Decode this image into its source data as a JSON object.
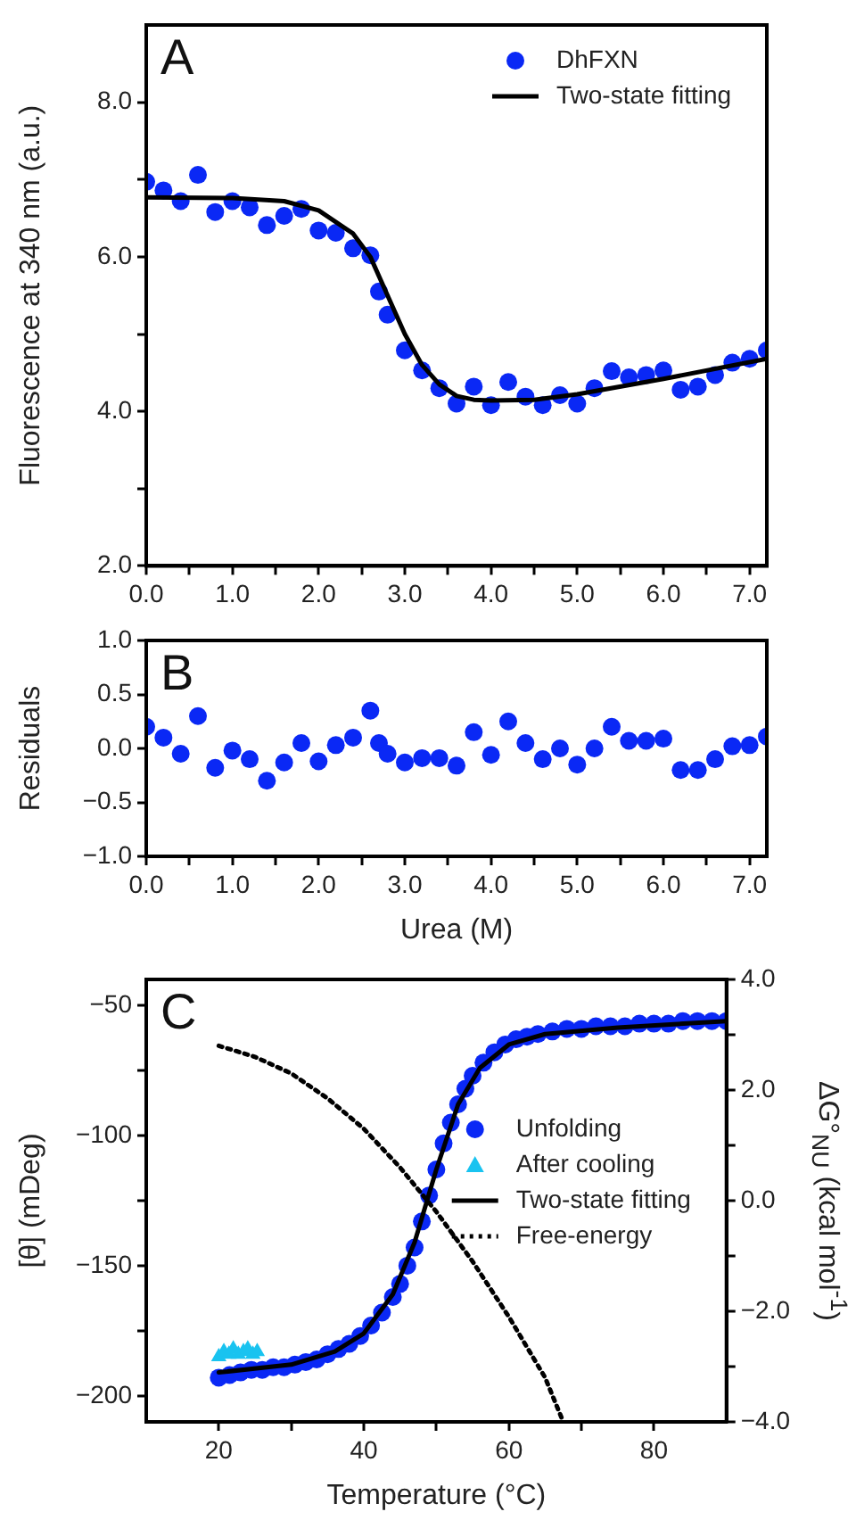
{
  "chart_data": [
    {
      "type": "scatter",
      "ylabel": "Fluorescence at 340 nm (a.u.)",
      "annotations": [
        "A"
      ],
      "legend": "top right",
      "grid": false,
      "xlim": [
        0,
        7.2
      ],
      "xticks": [
        {
          "value": 0,
          "label": "0.0"
        },
        {
          "value": 0.5,
          "label": null
        },
        {
          "value": 1,
          "label": "1.0"
        },
        {
          "value": 1.5,
          "label": null
        },
        {
          "value": 2,
          "label": "2.0"
        },
        {
          "value": 2.5,
          "label": null
        },
        {
          "value": 3,
          "label": "3.0"
        },
        {
          "value": 3.5,
          "label": null
        },
        {
          "value": 4,
          "label": "4.0"
        },
        {
          "value": 4.5,
          "label": null
        },
        {
          "value": 5,
          "label": "5.0"
        },
        {
          "value": 5.5,
          "label": null
        },
        {
          "value": 6,
          "label": "6.0"
        },
        {
          "value": 6.5,
          "label": null
        },
        {
          "value": 7,
          "label": "7.0"
        }
      ],
      "ylim": [
        2,
        9
      ],
      "yticks": [
        {
          "value": 2,
          "label": "2.0"
        },
        {
          "value": 3,
          "label": null
        },
        {
          "value": 4,
          "label": "4.0"
        },
        {
          "value": 5,
          "label": null
        },
        {
          "value": 6,
          "label": "6.0"
        },
        {
          "value": 7,
          "label": null
        },
        {
          "value": 8,
          "label": "8.0"
        }
      ],
      "series": [
        {
          "name": "DhFXN",
          "type": "scatter",
          "marker": "circle",
          "color": "#0a28f5",
          "x": [
            0,
            0.2,
            0.4,
            0.6,
            0.8,
            1.0,
            1.2,
            1.4,
            1.6,
            1.8,
            2.0,
            2.2,
            2.4,
            2.6,
            2.7,
            2.8,
            3.0,
            3.2,
            3.4,
            3.6,
            3.8,
            4.0,
            4.2,
            4.4,
            4.6,
            4.8,
            5.0,
            5.2,
            5.4,
            5.6,
            5.8,
            6.0,
            6.2,
            6.4,
            6.6,
            6.8,
            7.0,
            7.2
          ],
          "values": [
            6.97,
            6.86,
            6.72,
            7.06,
            6.58,
            6.72,
            6.64,
            6.41,
            6.53,
            6.62,
            6.34,
            6.31,
            6.11,
            6.02,
            5.55,
            5.25,
            4.79,
            4.53,
            4.3,
            4.1,
            4.32,
            4.08,
            4.38,
            4.19,
            4.08,
            4.21,
            4.1,
            4.3,
            4.52,
            4.44,
            4.47,
            4.53,
            4.28,
            4.32,
            4.47,
            4.63,
            4.68,
            4.79
          ]
        },
        {
          "name": "Two-state fitting",
          "type": "line",
          "line_style": "solid",
          "color": "#000000",
          "x": [
            0,
            1,
            1.6,
            2,
            2.4,
            2.6,
            2.8,
            3,
            3.2,
            3.4,
            3.6,
            3.8,
            4,
            4.5,
            5,
            6,
            7.2
          ],
          "values": [
            6.77,
            6.76,
            6.72,
            6.6,
            6.3,
            6.0,
            5.5,
            5.0,
            4.6,
            4.35,
            4.2,
            4.15,
            4.14,
            4.15,
            4.22,
            4.42,
            4.68
          ]
        }
      ]
    },
    {
      "type": "scatter",
      "ylabel": "Residuals",
      "xlabel": "Urea (M)",
      "annotations": [
        "B"
      ],
      "grid": false,
      "xlim": [
        0,
        7.2
      ],
      "xticks": [
        {
          "value": 0,
          "label": "0.0"
        },
        {
          "value": 0.5,
          "label": null
        },
        {
          "value": 1,
          "label": "1.0"
        },
        {
          "value": 1.5,
          "label": null
        },
        {
          "value": 2,
          "label": "2.0"
        },
        {
          "value": 2.5,
          "label": null
        },
        {
          "value": 3,
          "label": "3.0"
        },
        {
          "value": 3.5,
          "label": null
        },
        {
          "value": 4,
          "label": "4.0"
        },
        {
          "value": 4.5,
          "label": null
        },
        {
          "value": 5,
          "label": "5.0"
        },
        {
          "value": 5.5,
          "label": null
        },
        {
          "value": 6,
          "label": "6.0"
        },
        {
          "value": 6.5,
          "label": null
        },
        {
          "value": 7,
          "label": "7.0"
        }
      ],
      "ylim": [
        -1,
        1
      ],
      "yticks": [
        {
          "value": -1,
          "label": "−1.0"
        },
        {
          "value": -0.5,
          "label": "−0.5"
        },
        {
          "value": 0,
          "label": "0.0"
        },
        {
          "value": 0.5,
          "label": "0.5"
        },
        {
          "value": 1,
          "label": "1.0"
        }
      ],
      "series": [
        {
          "type": "scatter",
          "marker": "circle",
          "color": "#0a28f5",
          "x": [
            0,
            0.2,
            0.4,
            0.6,
            0.8,
            1.0,
            1.2,
            1.4,
            1.6,
            1.8,
            2.0,
            2.2,
            2.4,
            2.6,
            2.7,
            2.8,
            3.0,
            3.2,
            3.4,
            3.6,
            3.8,
            4.0,
            4.2,
            4.4,
            4.6,
            4.8,
            5.0,
            5.2,
            5.4,
            5.6,
            5.8,
            6.0,
            6.2,
            6.4,
            6.6,
            6.8,
            7.0,
            7.2
          ],
          "values": [
            0.2,
            0.1,
            -0.05,
            0.3,
            -0.18,
            -0.02,
            -0.1,
            -0.3,
            -0.13,
            0.05,
            -0.12,
            0.03,
            0.1,
            0.35,
            0.05,
            -0.05,
            -0.13,
            -0.09,
            -0.09,
            -0.16,
            0.15,
            -0.06,
            0.25,
            0.05,
            -0.1,
            0.0,
            -0.15,
            0.0,
            0.2,
            0.07,
            0.07,
            0.09,
            -0.2,
            -0.2,
            -0.1,
            0.02,
            0.03,
            0.11
          ]
        }
      ]
    },
    {
      "type": "scatter",
      "xlabel": "Temperature (°C)",
      "ylabel": "[θ] (mDeg)",
      "y2label": "ΔG°$_{NU}$ (kcal mol$^{-1}$)",
      "annotations": [
        "C"
      ],
      "legend": "right",
      "grid": false,
      "xlim": [
        10,
        90
      ],
      "xticks": [
        {
          "value": 20,
          "label": "20"
        },
        {
          "value": 30,
          "label": null
        },
        {
          "value": 40,
          "label": "40"
        },
        {
          "value": 50,
          "label": null
        },
        {
          "value": 60,
          "label": "60"
        },
        {
          "value": 70,
          "label": null
        },
        {
          "value": 80,
          "label": "80"
        }
      ],
      "ylim": [
        -210,
        -40
      ],
      "yticks": [
        {
          "value": -200,
          "label": "−200"
        },
        {
          "value": -175,
          "label": null
        },
        {
          "value": -150,
          "label": "−150"
        },
        {
          "value": -125,
          "label": null
        },
        {
          "value": -100,
          "label": "−100"
        },
        {
          "value": -75,
          "label": null
        },
        {
          "value": -50,
          "label": "−50"
        }
      ],
      "y2lim": [
        -4,
        4
      ],
      "y2ticks": [
        {
          "value": -4,
          "label": "−4.0"
        },
        {
          "value": -3,
          "label": null
        },
        {
          "value": -2,
          "label": "−2.0"
        },
        {
          "value": -1,
          "label": null
        },
        {
          "value": 0,
          "label": "0.0"
        },
        {
          "value": 1,
          "label": null
        },
        {
          "value": 2,
          "label": "2.0"
        },
        {
          "value": 3,
          "label": null
        },
        {
          "value": 4,
          "label": "4.0"
        }
      ],
      "series": [
        {
          "name": "Unfolding",
          "type": "scatter",
          "marker": "circle",
          "color": "#0a28f5",
          "x": [
            20,
            21.5,
            23,
            24.5,
            26,
            27.5,
            29,
            30.5,
            32,
            33.5,
            35,
            36.5,
            38,
            39.5,
            41,
            42.5,
            44,
            45,
            46,
            47,
            48,
            49,
            50,
            51,
            52,
            53,
            54,
            55,
            56.5,
            58,
            59.5,
            61,
            62.5,
            64,
            66,
            68,
            70,
            72,
            74,
            76,
            78,
            80,
            82,
            84,
            86,
            88,
            90
          ],
          "values": [
            -193,
            -192,
            -191,
            -190,
            -190,
            -189,
            -189,
            -188,
            -187,
            -186,
            -184,
            -182,
            -180,
            -177,
            -173,
            -168,
            -162,
            -157,
            -150,
            -143,
            -133,
            -123,
            -113,
            -103,
            -95,
            -88,
            -82,
            -77,
            -72,
            -68,
            -65,
            -63,
            -62,
            -61,
            -60,
            -59,
            -59,
            -58,
            -58,
            -58,
            -57,
            -57,
            -57,
            -56,
            -56,
            -56,
            -56
          ]
        },
        {
          "name": "After cooling",
          "type": "scatter",
          "marker": "triangle",
          "color": "#19c3f0",
          "x": [
            20,
            20.7,
            21.4,
            22,
            22.7,
            23.4,
            24,
            24.7,
            25.3
          ],
          "values": [
            -185,
            -183,
            -184,
            -182,
            -184,
            -183,
            -182,
            -184,
            -183
          ]
        },
        {
          "name": "Two-state fitting",
          "type": "line",
          "line_style": "solid",
          "color": "#000000",
          "x": [
            20,
            30,
            36,
            40,
            44,
            47,
            50,
            53,
            56,
            60,
            65,
            75,
            90
          ],
          "values": [
            -191,
            -188,
            -183,
            -176,
            -161,
            -141,
            -113,
            -88,
            -74,
            -65,
            -61,
            -58.5,
            -56
          ]
        },
        {
          "name": "Free-energy",
          "type": "line",
          "line_style": "dotted",
          "axis": "y2",
          "color": "#000000",
          "x": [
            20,
            25,
            30,
            35,
            40,
            45,
            50,
            55,
            60,
            65,
            67.5
          ],
          "values": [
            2.8,
            2.6,
            2.3,
            1.85,
            1.3,
            0.6,
            -0.2,
            -1.1,
            -2.1,
            -3.2,
            -4.0
          ]
        }
      ]
    }
  ]
}
